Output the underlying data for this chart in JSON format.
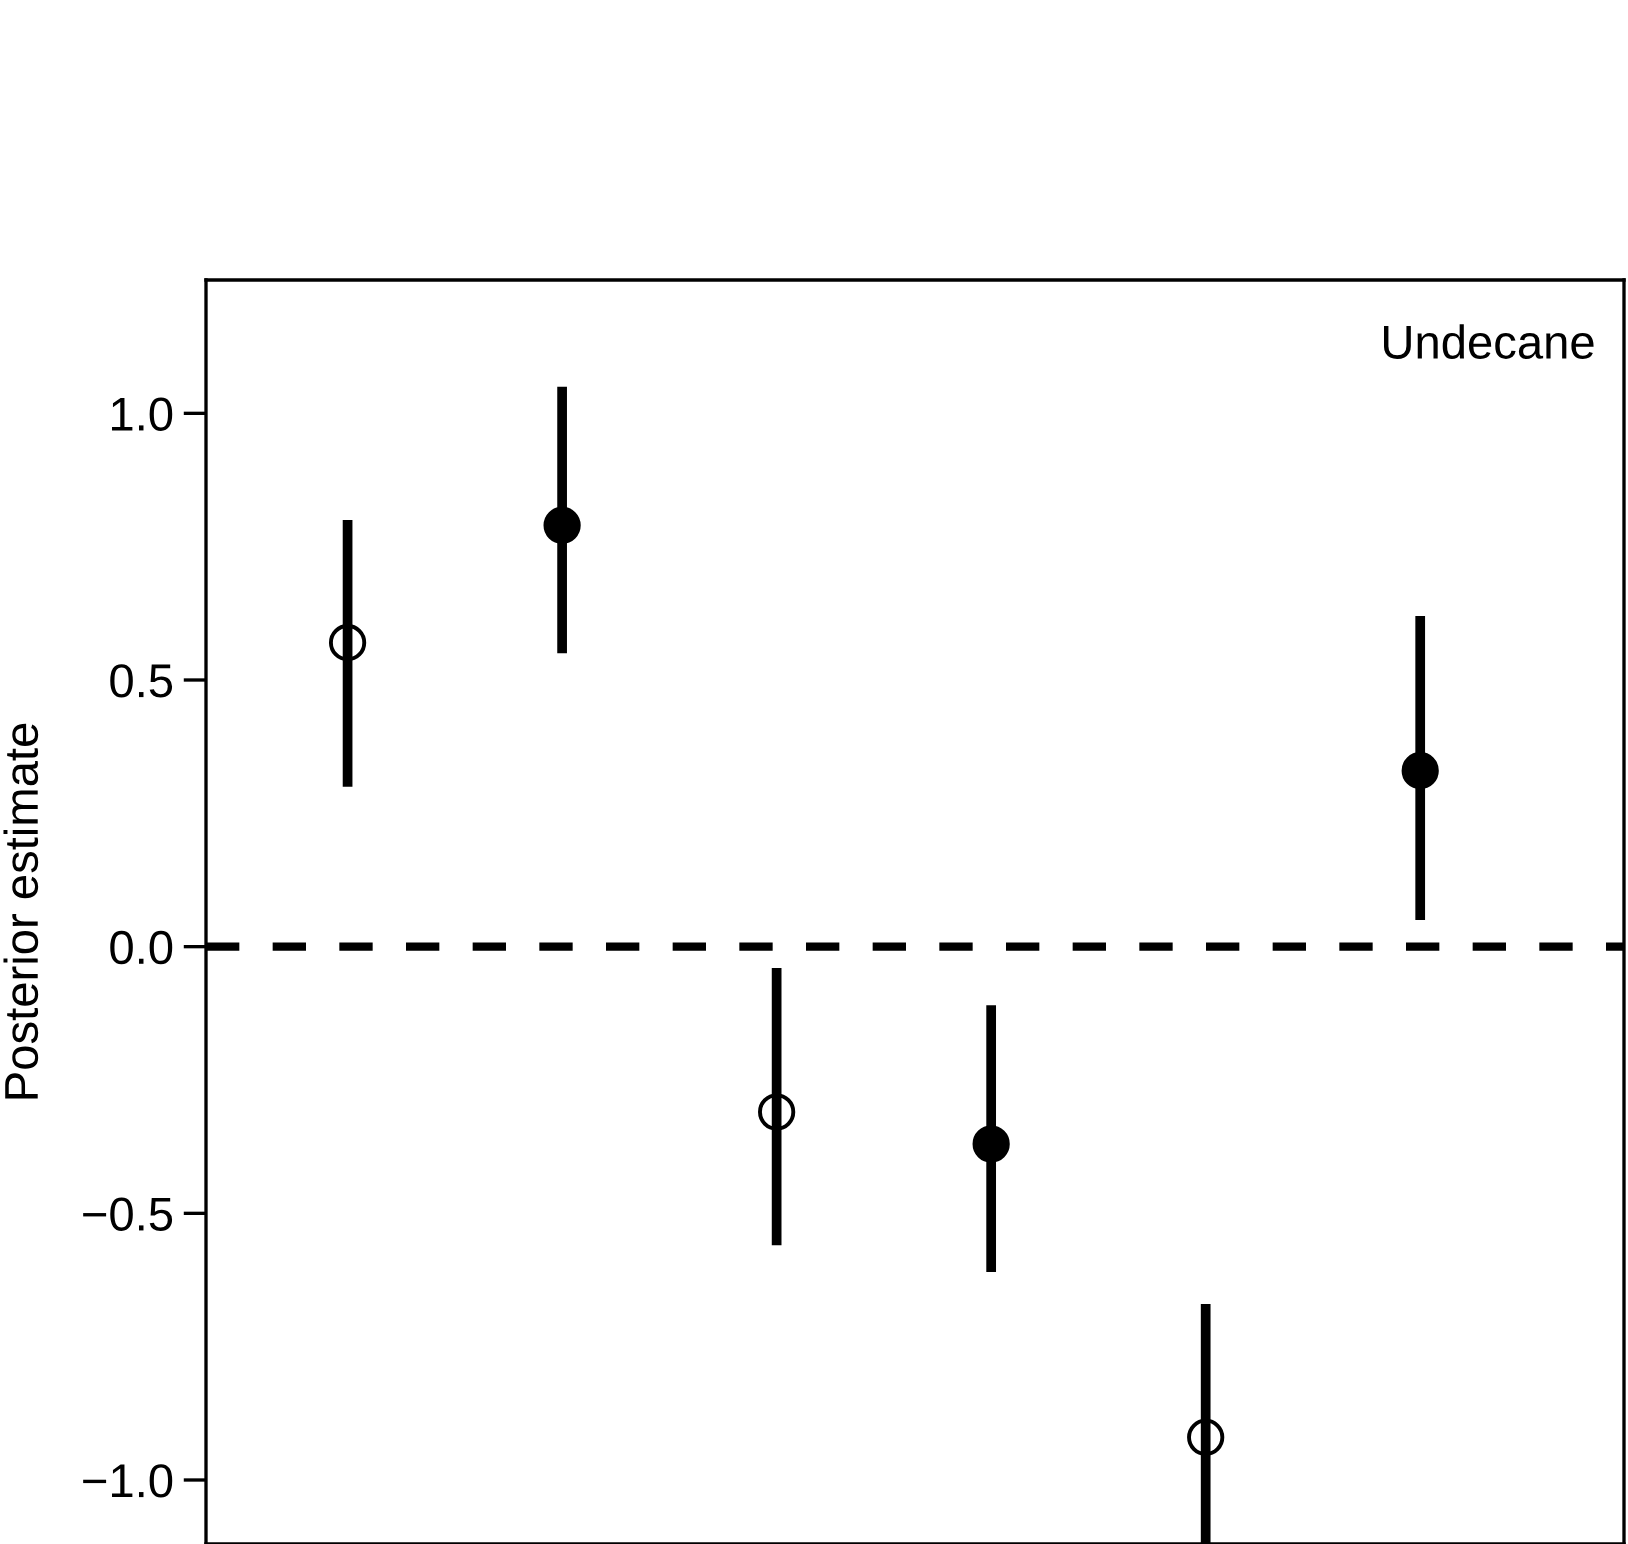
{
  "chart_data": {
    "type": "scatter",
    "ylabel": "Posterior estimate",
    "annotations": [
      "Undecane"
    ],
    "categories": [
      null,
      null,
      null,
      null,
      null,
      null
    ],
    "ylim": [
      -1.12,
      1.25
    ],
    "yticks": [
      {
        "value": 1.0,
        "label": "1.0"
      },
      {
        "value": 0.5,
        "label": "0.5"
      },
      {
        "value": 0.0,
        "label": "0.0"
      },
      {
        "value": -0.5,
        "label": "−0.5"
      },
      {
        "value": -1.0,
        "label": "−1.0"
      }
    ],
    "series": [
      {
        "color": "#ffffff",
        "values": [
          0.57,
          null,
          -0.31,
          null,
          -0.92,
          null
        ],
        "errors": [
          [
            0.3,
            0.8
          ],
          null,
          [
            -0.56,
            -0.04
          ],
          null,
          [
            -1.12,
            -0.67
          ],
          null
        ]
      },
      {
        "color": "#000000",
        "values": [
          null,
          0.79,
          null,
          -0.37,
          null,
          0.33
        ],
        "errors": [
          null,
          [
            0.55,
            1.05
          ],
          null,
          [
            -0.61,
            -0.11
          ],
          null,
          [
            0.05,
            0.62
          ]
        ]
      }
    ],
    "ref_lines": [
      {
        "axis": "y",
        "value": 0.0,
        "line_style": "dashed"
      }
    ],
    "marker": "circle",
    "grid": false,
    "legend": false,
    "tick_labels": "y"
  }
}
